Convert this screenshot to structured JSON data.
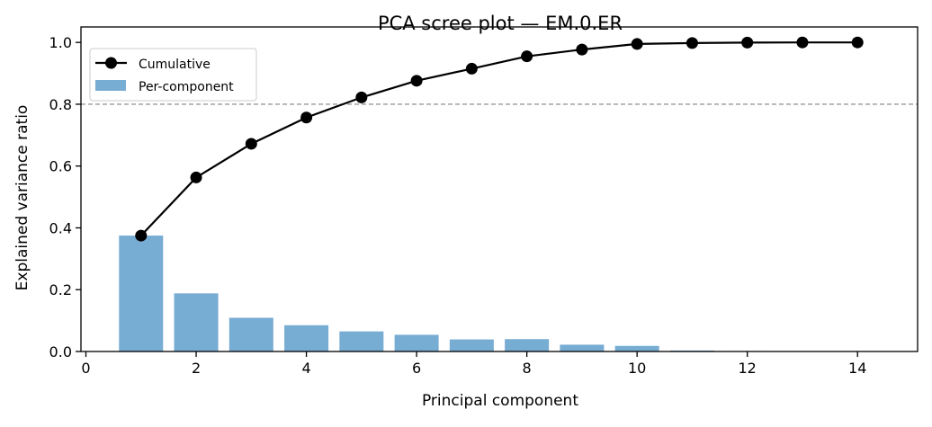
{
  "chart_data": {
    "type": "bar",
    "title": "PCA scree plot — EM.0.ER",
    "xlabel": "Principal component",
    "ylabel": "Explained variance ratio",
    "xlim": [
      -0.09,
      15.09
    ],
    "ylim": [
      0,
      1.05
    ],
    "xticks": [
      0,
      2,
      4,
      6,
      8,
      10,
      12,
      14
    ],
    "yticks": [
      0.0,
      0.2,
      0.4,
      0.6,
      0.8,
      1.0
    ],
    "grid": false,
    "legend_placement": "upper-left",
    "threshold_line": {
      "y": 0.8,
      "style": "dashed",
      "color": "#808080"
    },
    "x": [
      1,
      2,
      3,
      4,
      5,
      6,
      7,
      8,
      9,
      10,
      11,
      12,
      13,
      14
    ],
    "series": [
      {
        "name": "Cumulative",
        "type": "line",
        "color": "#000000",
        "values": [
          0.375,
          0.563,
          0.672,
          0.757,
          0.822,
          0.876,
          0.915,
          0.955,
          0.977,
          0.995,
          0.998,
          0.9995,
          1.0,
          1.0
        ]
      },
      {
        "name": "Per-component",
        "type": "bar",
        "color": "#77acd3",
        "values": [
          0.375,
          0.188,
          0.109,
          0.085,
          0.065,
          0.054,
          0.039,
          0.04,
          0.022,
          0.018,
          0.003,
          0.0015,
          0.0005,
          0.0
        ]
      }
    ]
  }
}
